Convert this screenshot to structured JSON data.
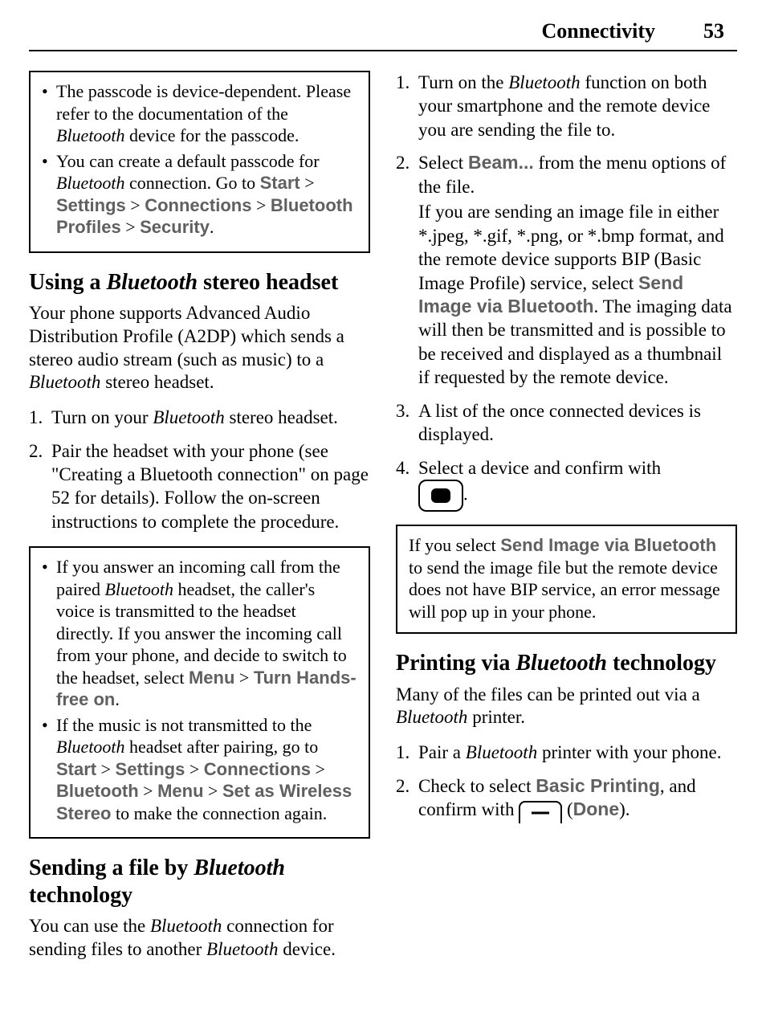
{
  "header": {
    "section": "Connectivity",
    "page_number": "53"
  },
  "left": {
    "note1": {
      "items": [
        {
          "pre": "The passcode is device-dependent. Please refer to the documentation of the ",
          "it1": "Bluetooth",
          "post1": " device for the passcode."
        },
        {
          "pre": "You can create a default passcode for ",
          "it1": "Bluetooth",
          "mid": " connection. Go to ",
          "path": [
            "Start",
            "Settings",
            "Connections",
            "Bluetooth Profiles",
            "Security"
          ],
          "post2": "."
        }
      ]
    },
    "h_headset_a": "Using a ",
    "h_headset_it": "Bluetooth",
    "h_headset_b": " stereo headset",
    "p_headset_a": "Your phone supports Advanced Audio Distribution Profile (A2DP) which sends a stereo audio stream (such as music) to a ",
    "p_headset_it": "Bluetooth",
    "p_headset_b": " stereo headset.",
    "steps_headset": [
      {
        "a": "Turn on your ",
        "it": "Bluetooth",
        "b": " stereo headset."
      },
      {
        "a": "Pair the headset with your phone (see \"Creating a Bluetooth connection\" on page 52 for details). Follow the on-screen instructions to complete the procedure."
      }
    ],
    "note2": {
      "items": [
        {
          "a": "If you answer an incoming call from the paired ",
          "it1": "Bluetooth",
          "b": " headset, the caller's voice is transmitted to the headset directly. If you answer the incoming call from your phone, and decide to switch to the headset, select ",
          "ui1": "Menu",
          "sep1": " > ",
          "ui2": "Turn Hands-free on",
          "c": "."
        },
        {
          "a": "If the music is not transmitted to the ",
          "it1": "Bluetooth",
          "b": " headset after pairing, go to ",
          "path": [
            "Start",
            "Settings",
            "Connections",
            "Bluetooth",
            "Menu",
            "Set as Wireless Stereo"
          ],
          "c": " to make the connection again."
        }
      ]
    },
    "h_send_a": "Sending a file by ",
    "h_send_it": "Bluetooth",
    "h_send_b": " technology",
    "p_send_a": "You can use the ",
    "p_send_it1": "Bluetooth",
    "p_send_b": " connection for sending files to another ",
    "p_send_it2": "Bluetooth",
    "p_send_c": " device."
  },
  "right": {
    "steps_send": [
      {
        "a": "Turn on the ",
        "it": "Bluetooth",
        "b": " function on both your smartphone and the remote device you are sending the file to."
      },
      {
        "a": "Select ",
        "ui": "Beam...",
        "b": " from the menu options of the file.",
        "sub_a": "If you are sending an image file in either *.jpeg, *.gif, *.png, or *.bmp format, and the remote device supports BIP (Basic Image Profile) service, select ",
        "sub_ui": "Send Image via Bluetooth",
        "sub_b": ". The imaging data will then be transmitted and is possible to be received and displayed as a thumbnail if requested by the remote device."
      },
      {
        "a": "A list of the once connected devices is displayed."
      },
      {
        "a": "Select a device and confirm with ",
        "icon": "center",
        "b": "."
      }
    ],
    "note3_a": "If you select ",
    "note3_ui": "Send Image via Bluetooth",
    "note3_b": " to send the image file but the remote device does not have BIP service, an error message will pop up in your phone.",
    "h_print_a": "Printing via ",
    "h_print_it": "Bluetooth",
    "h_print_b": " technology",
    "p_print_a": "Many of the files can be printed out via a ",
    "p_print_it": "Bluetooth",
    "p_print_b": " printer.",
    "steps_print": [
      {
        "a": "Pair a ",
        "it": "Bluetooth",
        "b": " printer with your phone."
      },
      {
        "a": "Check to select ",
        "ui": "Basic Printing",
        "b": ", and confirm with ",
        "icon": "softkey",
        "c": " (",
        "ui2": "Done",
        "d": ")."
      }
    ]
  },
  "sep": " > "
}
